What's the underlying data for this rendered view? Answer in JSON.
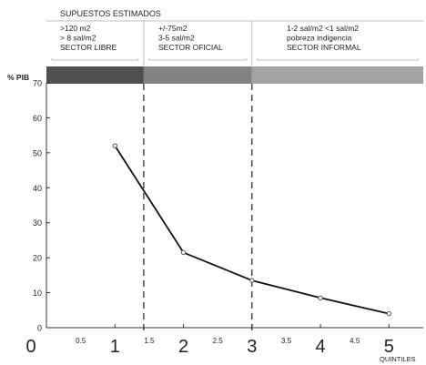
{
  "chart_data": {
    "type": "line",
    "header": {
      "title": "SUPUESTOS ESTIMADOS",
      "sectors": [
        {
          "lines": [
            ">120 m2",
            "> 8 sal/m2",
            "SECTOR LIBRE"
          ],
          "color": "#505050"
        },
        {
          "lines": [
            "+/-75m2",
            "3-5 sal/m2",
            "SECTOR OFICIAL"
          ],
          "color": "#828282"
        },
        {
          "lines": [
            "1-2 sal/m2  <1 sal/m2",
            "pobreza    indigencia",
            "SECTOR INFORMAL"
          ],
          "color": "#a3a3a3"
        }
      ]
    },
    "boundaries": [
      1.42,
      3.0
    ],
    "ylabel": "% PIB",
    "xlabel": "QUINTILES",
    "xlim": [
      0,
      5.5
    ],
    "ylim": [
      0,
      70
    ],
    "yticks": [
      0,
      10,
      20,
      30,
      40,
      50,
      60,
      70
    ],
    "xticks_major": [
      0,
      1,
      2,
      3,
      4,
      5
    ],
    "xticks_minor": [
      0.5,
      1.5,
      2.5,
      3.5,
      4.5
    ],
    "series": [
      {
        "x": [
          1,
          2,
          3,
          4,
          5
        ],
        "y": [
          52,
          21.5,
          13.5,
          8.5,
          4
        ]
      }
    ]
  }
}
